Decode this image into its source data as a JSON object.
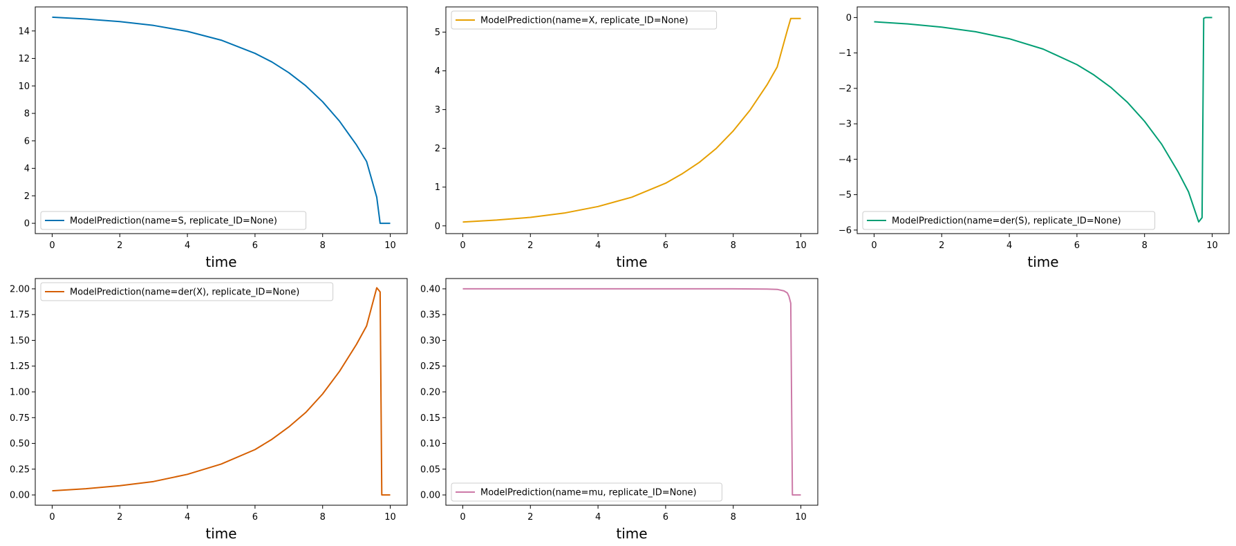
{
  "chart_data": [
    {
      "type": "line",
      "xlabel": "time",
      "xlim": [
        -0.5,
        10.5
      ],
      "ylim": [
        -0.75,
        15.75
      ],
      "xticks": [
        0,
        2,
        4,
        6,
        8,
        10
      ],
      "yticks": [
        0,
        2,
        4,
        6,
        8,
        10,
        12,
        14
      ],
      "ytick_labels": [
        "0",
        "2",
        "4",
        "6",
        "8",
        "10",
        "12",
        "14"
      ],
      "legend_loc": "lower-left",
      "grid": false,
      "series": [
        {
          "name": "ModelPrediction(name=S, replicate_ID=None)",
          "color": "#0072B2",
          "x": [
            0,
            1,
            2,
            3,
            4,
            5,
            6,
            6.5,
            7,
            7.5,
            8,
            8.5,
            9,
            9.3,
            9.6,
            9.7,
            10
          ],
          "y": [
            15.0,
            14.87,
            14.68,
            14.4,
            13.97,
            13.33,
            12.37,
            11.74,
            10.96,
            10.01,
            8.85,
            7.43,
            5.71,
            4.5,
            1.9,
            0.0,
            0.0
          ]
        }
      ]
    },
    {
      "type": "line",
      "xlabel": "time",
      "xlim": [
        -0.5,
        10.5
      ],
      "ylim": [
        -0.2,
        5.65
      ],
      "xticks": [
        0,
        2,
        4,
        6,
        8,
        10
      ],
      "yticks": [
        0,
        1,
        2,
        3,
        4,
        5
      ],
      "ytick_labels": [
        "0",
        "1",
        "2",
        "3",
        "4",
        "5"
      ],
      "legend_loc": "upper-left",
      "grid": false,
      "series": [
        {
          "name": "ModelPrediction(name=X, replicate_ID=None)",
          "color": "#E69F00",
          "x": [
            0,
            1,
            2,
            3,
            4,
            5,
            6,
            6.5,
            7,
            7.5,
            8,
            8.5,
            9,
            9.3,
            9.6,
            9.7,
            10
          ],
          "y": [
            0.1,
            0.15,
            0.22,
            0.33,
            0.5,
            0.74,
            1.1,
            1.35,
            1.64,
            2.0,
            2.45,
            2.99,
            3.64,
            4.1,
            5.05,
            5.35,
            5.35
          ]
        }
      ]
    },
    {
      "type": "line",
      "xlabel": "time",
      "xlim": [
        -0.5,
        10.5
      ],
      "ylim": [
        -6.1,
        0.3
      ],
      "xticks": [
        0,
        2,
        4,
        6,
        8,
        10
      ],
      "yticks": [
        0,
        -1,
        -2,
        -3,
        -4,
        -5,
        -6
      ],
      "ytick_labels": [
        "0",
        "−1",
        "−2",
        "−3",
        "−4",
        "−5",
        "−6"
      ],
      "legend_loc": "lower-left",
      "grid": false,
      "series": [
        {
          "name": "ModelPrediction(name=der(S), replicate_ID=None)",
          "color": "#009E73",
          "x": [
            0,
            1,
            2,
            3,
            4,
            5,
            6,
            6.5,
            7,
            7.5,
            8,
            8.5,
            9,
            9.3,
            9.6,
            9.7,
            9.75,
            9.8,
            10
          ],
          "y": [
            -0.12,
            -0.18,
            -0.27,
            -0.4,
            -0.6,
            -0.89,
            -1.33,
            -1.62,
            -1.97,
            -2.4,
            -2.93,
            -3.57,
            -4.37,
            -4.92,
            -5.77,
            -5.65,
            -0.02,
            0.0,
            0.0
          ]
        }
      ]
    },
    {
      "type": "line",
      "xlabel": "time",
      "xlim": [
        -0.5,
        10.5
      ],
      "ylim": [
        -0.1,
        2.1
      ],
      "xticks": [
        0,
        2,
        4,
        6,
        8,
        10
      ],
      "yticks": [
        0,
        0.25,
        0.5,
        0.75,
        1.0,
        1.25,
        1.5,
        1.75,
        2.0
      ],
      "ytick_labels": [
        "0.00",
        "0.25",
        "0.50",
        "0.75",
        "1.00",
        "1.25",
        "1.50",
        "1.75",
        "2.00"
      ],
      "legend_loc": "upper-left",
      "grid": false,
      "series": [
        {
          "name": "ModelPrediction(name=der(X), replicate_ID=None)",
          "color": "#D55E00",
          "x": [
            0,
            1,
            2,
            3,
            4,
            5,
            6,
            6.5,
            7,
            7.5,
            8,
            8.5,
            9,
            9.3,
            9.6,
            9.7,
            9.75,
            10
          ],
          "y": [
            0.04,
            0.06,
            0.09,
            0.13,
            0.2,
            0.3,
            0.44,
            0.54,
            0.66,
            0.8,
            0.98,
            1.2,
            1.46,
            1.64,
            2.01,
            1.97,
            0.0,
            0.0
          ]
        }
      ]
    },
    {
      "type": "line",
      "xlabel": "time",
      "xlim": [
        -0.5,
        10.5
      ],
      "ylim": [
        -0.02,
        0.42
      ],
      "xticks": [
        0,
        2,
        4,
        6,
        8,
        10
      ],
      "yticks": [
        0,
        0.05,
        0.1,
        0.15,
        0.2,
        0.25,
        0.3,
        0.35,
        0.4
      ],
      "ytick_labels": [
        "0.00",
        "0.05",
        "0.10",
        "0.15",
        "0.20",
        "0.25",
        "0.30",
        "0.35",
        "0.40"
      ],
      "legend_loc": "lower-left",
      "grid": false,
      "series": [
        {
          "name": "ModelPrediction(name=mu, replicate_ID=None)",
          "color": "#CC79A7",
          "x": [
            0,
            2,
            4,
            6,
            8,
            9,
            9.3,
            9.5,
            9.6,
            9.65,
            9.7,
            9.75,
            10
          ],
          "y": [
            0.4,
            0.4,
            0.4,
            0.4,
            0.4,
            0.3995,
            0.399,
            0.396,
            0.392,
            0.385,
            0.372,
            0.0,
            0.0
          ]
        }
      ]
    }
  ]
}
